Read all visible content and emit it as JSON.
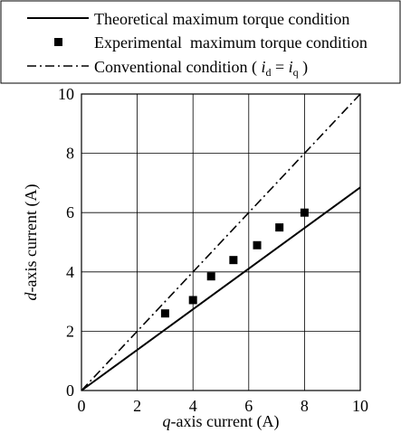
{
  "chart_data": {
    "type": "line",
    "xlabel_prefix": "q",
    "xlabel_suffix": "-axis current (A)",
    "ylabel_prefix": "d",
    "ylabel_suffix": "-axis current (A)",
    "xlim": [
      0,
      10
    ],
    "ylim": [
      0,
      10
    ],
    "xticks": [
      0,
      2,
      4,
      6,
      8,
      10
    ],
    "yticks": [
      0,
      2,
      4,
      6,
      8,
      10
    ],
    "grid": true,
    "legend_position": "top, above plot",
    "series": [
      {
        "name": "Theoretical maximum torque condition",
        "style": "solid",
        "points": [
          [
            0,
            0
          ],
          [
            10,
            6.85
          ]
        ]
      },
      {
        "name": "Experimental  maximum torque condition",
        "style": "square-marker",
        "points": [
          [
            3.0,
            2.6
          ],
          [
            4.0,
            3.05
          ],
          [
            4.65,
            3.85
          ],
          [
            5.45,
            4.4
          ],
          [
            6.3,
            4.9
          ],
          [
            7.1,
            5.5
          ],
          [
            8.0,
            6.0
          ]
        ]
      },
      {
        "name_prefix": "Conventional condition ( ",
        "name_i1": "i",
        "name_sub1": "d",
        "name_mid": " = ",
        "name_i2": "i",
        "name_sub2": "q",
        "name_suffix": " )",
        "style": "dash-dot",
        "points": [
          [
            0,
            0
          ],
          [
            10,
            10
          ]
        ]
      }
    ]
  }
}
